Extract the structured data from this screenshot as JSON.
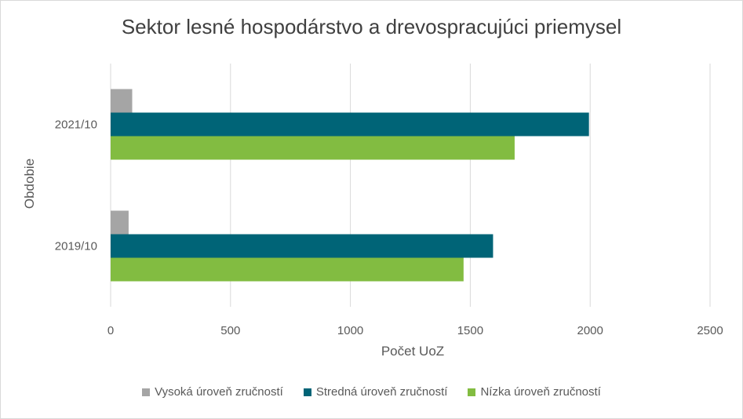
{
  "chart_data": {
    "type": "bar",
    "orientation": "horizontal",
    "title": "Sektor lesné hospodárstvo a drevospracujúci priemysel",
    "xlabel": "Počet UoZ",
    "ylabel": "Obdobie",
    "xlim": [
      0,
      2500
    ],
    "x_ticks": [
      "0",
      "500",
      "1000",
      "1500",
      "2000",
      "2500"
    ],
    "categories": [
      "2019/10",
      "2021/10"
    ],
    "grid": true,
    "legend_position": "bottom",
    "series": [
      {
        "name": "Vysoká úroveň zručností",
        "color": "#a5a5a5",
        "values": [
          75,
          90
        ]
      },
      {
        "name": "Stredná úroveň zručností",
        "color": "#006477",
        "values": [
          1595,
          1995
        ]
      },
      {
        "name": "Nízka úroveň zručností",
        "color": "#82bc41",
        "values": [
          1472,
          1685
        ]
      }
    ]
  }
}
